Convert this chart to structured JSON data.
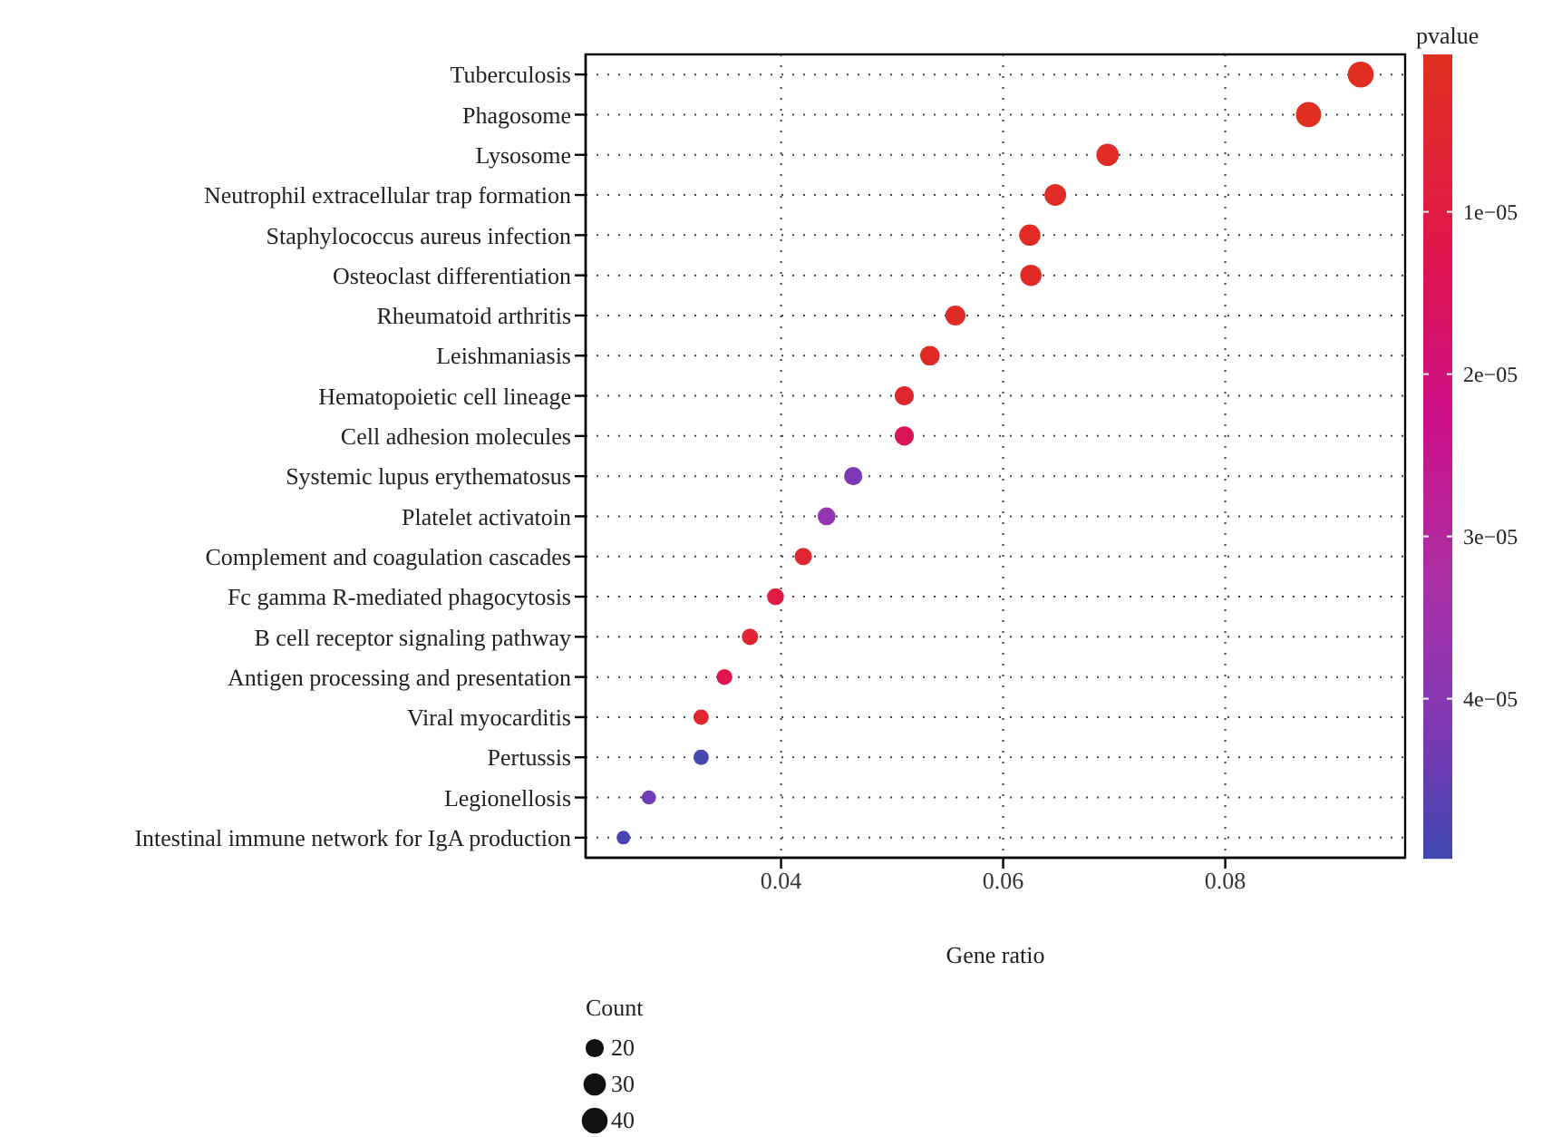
{
  "chart_data": {
    "type": "bubble",
    "xlabel": "Gene ratio",
    "clabel": "pvalue",
    "legend_title": "Count",
    "categories": [
      "Tuberculosis",
      "Phagosome",
      "Lysosome",
      "Neutrophil extracellular trap formation",
      "Staphylococcus aureus infection",
      "Osteoclast differentiation",
      "Rheumatoid arthritis",
      "Leishmaniasis",
      "Hematopoietic cell lineage",
      "Cell adhesion molecules",
      "Systemic lupus erythematosus",
      "Platelet activatoin",
      "Complement and coagulation cascades",
      "Fc gamma R-mediated phagocytosis",
      "B cell receptor signaling pathway",
      "Antigen processing and presentation",
      "Viral myocarditis",
      "Pertussis",
      "Legionellosis",
      "Intestinal immune network for IgA production"
    ],
    "values": [
      0.0922,
      0.0875,
      0.0694,
      0.0647,
      0.0624,
      0.0625,
      0.0557,
      0.0534,
      0.0511,
      0.0511,
      0.0465,
      0.0441,
      0.042,
      0.0395,
      0.0372,
      0.0349,
      0.0328,
      0.0328,
      0.0281,
      0.0258
    ],
    "sizes": [
      40,
      38,
      30,
      28,
      27,
      27,
      24,
      23,
      22,
      22,
      20,
      19,
      18,
      17,
      16,
      15,
      14,
      14,
      12,
      11
    ],
    "cvalues": [
      1e-06,
      1e-06,
      2e-06,
      2e-06,
      2e-06,
      3e-06,
      3e-06,
      3e-06,
      5e-06,
      1.5e-05,
      4.2e-05,
      3.8e-05,
      5e-06,
      1e-05,
      6e-06,
      1.3e-05,
      4e-06,
      4.9e-05,
      4.4e-05,
      4.9e-05
    ],
    "size_legend": [
      20,
      30,
      40
    ],
    "xlim": [
      0.0224,
      0.0962
    ],
    "xticks": [
      0.04,
      0.06,
      0.08
    ],
    "clim": [
      3e-07,
      4.98e-05
    ],
    "cticks": [
      {
        "value": 1e-05,
        "label": "1e−05"
      },
      {
        "value": 2e-05,
        "label": "2e−05"
      },
      {
        "value": 3e-05,
        "label": "3e−05"
      },
      {
        "value": 4e-05,
        "label": "4e−05"
      }
    ],
    "grid": true,
    "marker": "circle",
    "orientation": "horizontal"
  }
}
